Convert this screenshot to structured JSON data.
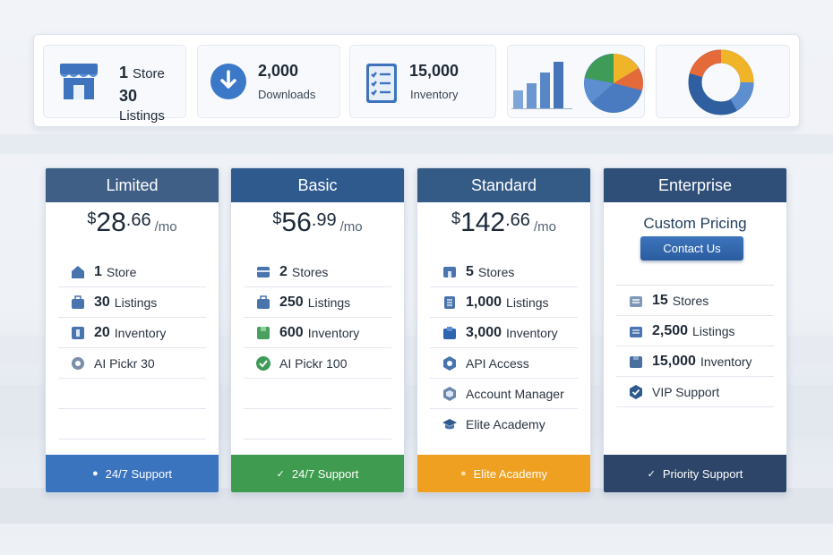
{
  "stats": {
    "store": {
      "num": "1",
      "unit": "Store",
      "sub_num": "30",
      "sub": "Listings",
      "icon": "storefront-icon"
    },
    "downloads": {
      "num": "2,000",
      "sub": "Downloads",
      "icon": "download-icon"
    },
    "inventory": {
      "num": "15,000",
      "sub": "Inventory",
      "icon": "checklist-icon"
    },
    "bar_chart": {
      "values": [
        2,
        3,
        4,
        5
      ],
      "color": "#4f7fc0"
    },
    "pie_chart": {
      "slices": [
        30,
        15,
        20,
        35
      ],
      "colors": [
        "#4a7bc0",
        "#f0b429",
        "#e56a3a",
        "#3f9b58"
      ]
    },
    "donut_chart": {
      "slices": [
        40,
        25,
        20,
        15
      ],
      "colors": [
        "#2f5f9e",
        "#5d8fd0",
        "#f0b429",
        "#e56a3a"
      ]
    }
  },
  "plans": [
    {
      "name": "Limited",
      "header_color": "#3f5f86",
      "footer_color": "#3a73be",
      "price": {
        "currency": "$",
        "amount": "28",
        "cents": ".66",
        "per": "/mo"
      },
      "features": [
        {
          "icon": "home-icon",
          "num": "1",
          "label": "Store"
        },
        {
          "icon": "briefcase-icon",
          "num": "30",
          "label": "Listings"
        },
        {
          "icon": "box-icon",
          "num": "20",
          "label": "Inventory"
        },
        {
          "icon": "gear-icon",
          "num": "",
          "label": "AI Pickr 30"
        }
      ],
      "footer": {
        "mark": "●",
        "label": "24/7 Support"
      }
    },
    {
      "name": "Basic",
      "header_color": "#2f5a8e",
      "footer_color": "#3f9b4f",
      "price": {
        "currency": "$",
        "amount": "56",
        "cents": ".99",
        "per": "/mo"
      },
      "features": [
        {
          "icon": "store-icon",
          "num": "2",
          "label": "Stores"
        },
        {
          "icon": "briefcase-icon",
          "num": "250",
          "label": "Listings"
        },
        {
          "icon": "box-icon",
          "num": "600",
          "label": "Inventory"
        },
        {
          "icon": "check-circle-icon",
          "num": "",
          "label": "AI Pickr 100"
        }
      ],
      "footer": {
        "mark": "✓",
        "label": "24/7 Support"
      }
    },
    {
      "name": "Standard",
      "header_color": "#345a86",
      "footer_color": "#f0a020",
      "price": {
        "currency": "$",
        "amount": "142",
        "cents": ".66",
        "per": "/mo"
      },
      "features": [
        {
          "icon": "store-icon",
          "num": "5",
          "label": "Stores"
        },
        {
          "icon": "listing-icon",
          "num": "1,000",
          "label": "Listings"
        },
        {
          "icon": "box-icon",
          "num": "3,000",
          "label": "Inventory"
        },
        {
          "icon": "api-icon",
          "num": "",
          "label": "API Access"
        },
        {
          "icon": "shield-icon",
          "num": "",
          "label": "Account Manager"
        },
        {
          "icon": "graduation-cap-icon",
          "num": "",
          "label": "Elite Academy"
        }
      ],
      "footer": {
        "mark": "●",
        "label": "Elite Academy"
      }
    },
    {
      "name": "Enterprise",
      "header_color": "#2f4f78",
      "footer_color": "#2c4568",
      "custom_title": "Custom Pricing",
      "contact_label": "Contact Us",
      "features": [
        {
          "icon": "store-icon",
          "num": "15",
          "label": "Stores"
        },
        {
          "icon": "listing-icon",
          "num": "2,500",
          "label": "Listings"
        },
        {
          "icon": "box-icon",
          "num": "15,000",
          "label": "Inventory"
        },
        {
          "icon": "shield-check-icon",
          "num": "",
          "label": "VIP Support"
        }
      ],
      "footer": {
        "mark": "✓",
        "label": "Priority Support"
      }
    }
  ]
}
